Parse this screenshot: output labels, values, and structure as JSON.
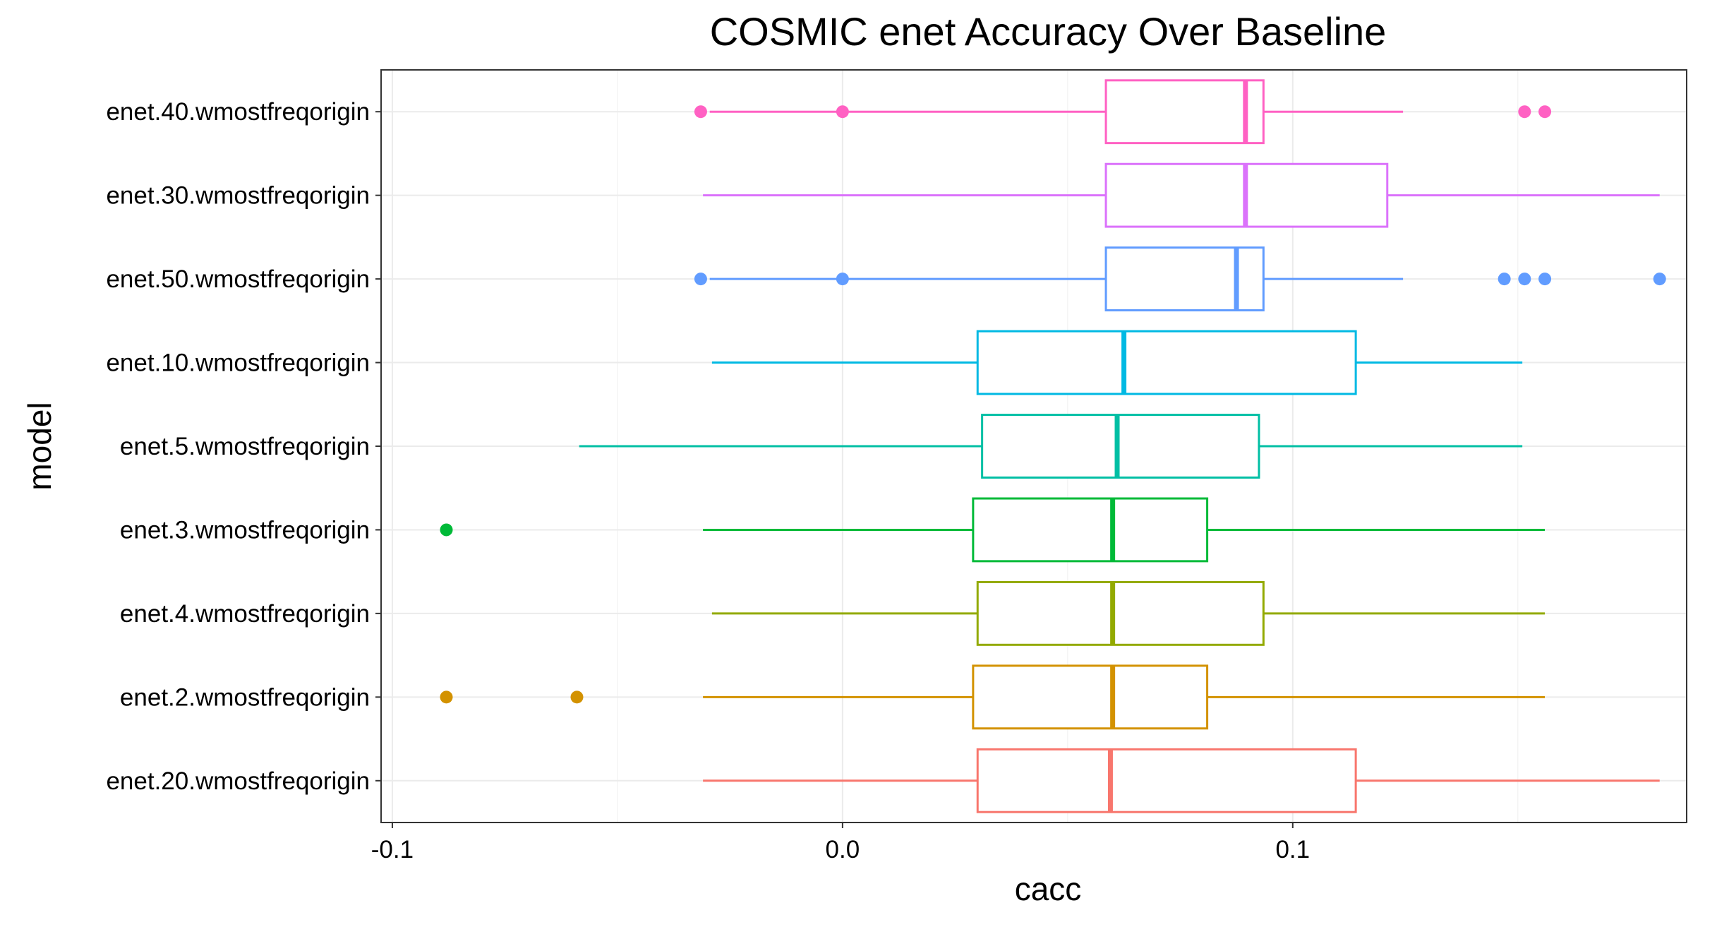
{
  "chart_data": {
    "type": "boxplot",
    "orientation": "horizontal",
    "title": "COSMIC enet Accuracy Over Baseline",
    "xlabel": "cacc",
    "ylabel": "model",
    "xlim": [
      -0.1025,
      0.1875
    ],
    "x_ticks": [
      {
        "value": -0.1,
        "label": "-0.1"
      },
      {
        "value": 0.0,
        "label": "0.0"
      },
      {
        "value": 0.1,
        "label": "0.1"
      }
    ],
    "x_minor_gridlines": [
      -0.05,
      0.05,
      0.15
    ],
    "grid": true,
    "legend": "none",
    "categories": [
      "enet.40.wmostfreqorigin",
      "enet.30.wmostfreqorigin",
      "enet.50.wmostfreqorigin",
      "enet.10.wmostfreqorigin",
      "enet.5.wmostfreqorigin",
      "enet.3.wmostfreqorigin",
      "enet.4.wmostfreqorigin",
      "enet.2.wmostfreqorigin",
      "enet.20.wmostfreqorigin"
    ],
    "series": [
      {
        "name": "enet.40.wmostfreqorigin",
        "color": "#FF61C3",
        "whisker_low": -0.0295,
        "q1": 0.0585,
        "median": 0.0895,
        "q3": 0.0935,
        "whisker_high": 0.1245,
        "outliers": [
          -0.0315,
          0.0,
          0.1515,
          0.156
        ]
      },
      {
        "name": "enet.30.wmostfreqorigin",
        "color": "#DB72FB",
        "whisker_low": -0.031,
        "q1": 0.0585,
        "median": 0.0895,
        "q3": 0.121,
        "whisker_high": 0.1815,
        "outliers": []
      },
      {
        "name": "enet.50.wmostfreqorigin",
        "color": "#619CFF",
        "whisker_low": -0.0295,
        "q1": 0.0585,
        "median": 0.0875,
        "q3": 0.0935,
        "whisker_high": 0.1245,
        "outliers": [
          -0.0315,
          0.0,
          0.147,
          0.1515,
          0.156,
          0.1815
        ]
      },
      {
        "name": "enet.10.wmostfreqorigin",
        "color": "#00B9E3",
        "whisker_low": -0.029,
        "q1": 0.03,
        "median": 0.0625,
        "q3": 0.114,
        "whisker_high": 0.151,
        "outliers": []
      },
      {
        "name": "enet.5.wmostfreqorigin",
        "color": "#00BFA4",
        "whisker_low": -0.0585,
        "q1": 0.031,
        "median": 0.061,
        "q3": 0.0925,
        "whisker_high": 0.151,
        "outliers": []
      },
      {
        "name": "enet.3.wmostfreqorigin",
        "color": "#00BA38",
        "whisker_low": -0.031,
        "q1": 0.029,
        "median": 0.06,
        "q3": 0.081,
        "whisker_high": 0.156,
        "outliers": [
          -0.088
        ]
      },
      {
        "name": "enet.4.wmostfreqorigin",
        "color": "#93AA00",
        "whisker_low": -0.029,
        "q1": 0.03,
        "median": 0.06,
        "q3": 0.0935,
        "whisker_high": 0.156,
        "outliers": []
      },
      {
        "name": "enet.2.wmostfreqorigin",
        "color": "#D39200",
        "whisker_low": -0.031,
        "q1": 0.029,
        "median": 0.06,
        "q3": 0.081,
        "whisker_high": 0.156,
        "outliers": [
          -0.088,
          -0.059
        ]
      },
      {
        "name": "enet.20.wmostfreqorigin",
        "color": "#F8766D",
        "whisker_low": -0.031,
        "q1": 0.03,
        "median": 0.0595,
        "q3": 0.114,
        "whisker_high": 0.1815,
        "outliers": []
      }
    ]
  }
}
